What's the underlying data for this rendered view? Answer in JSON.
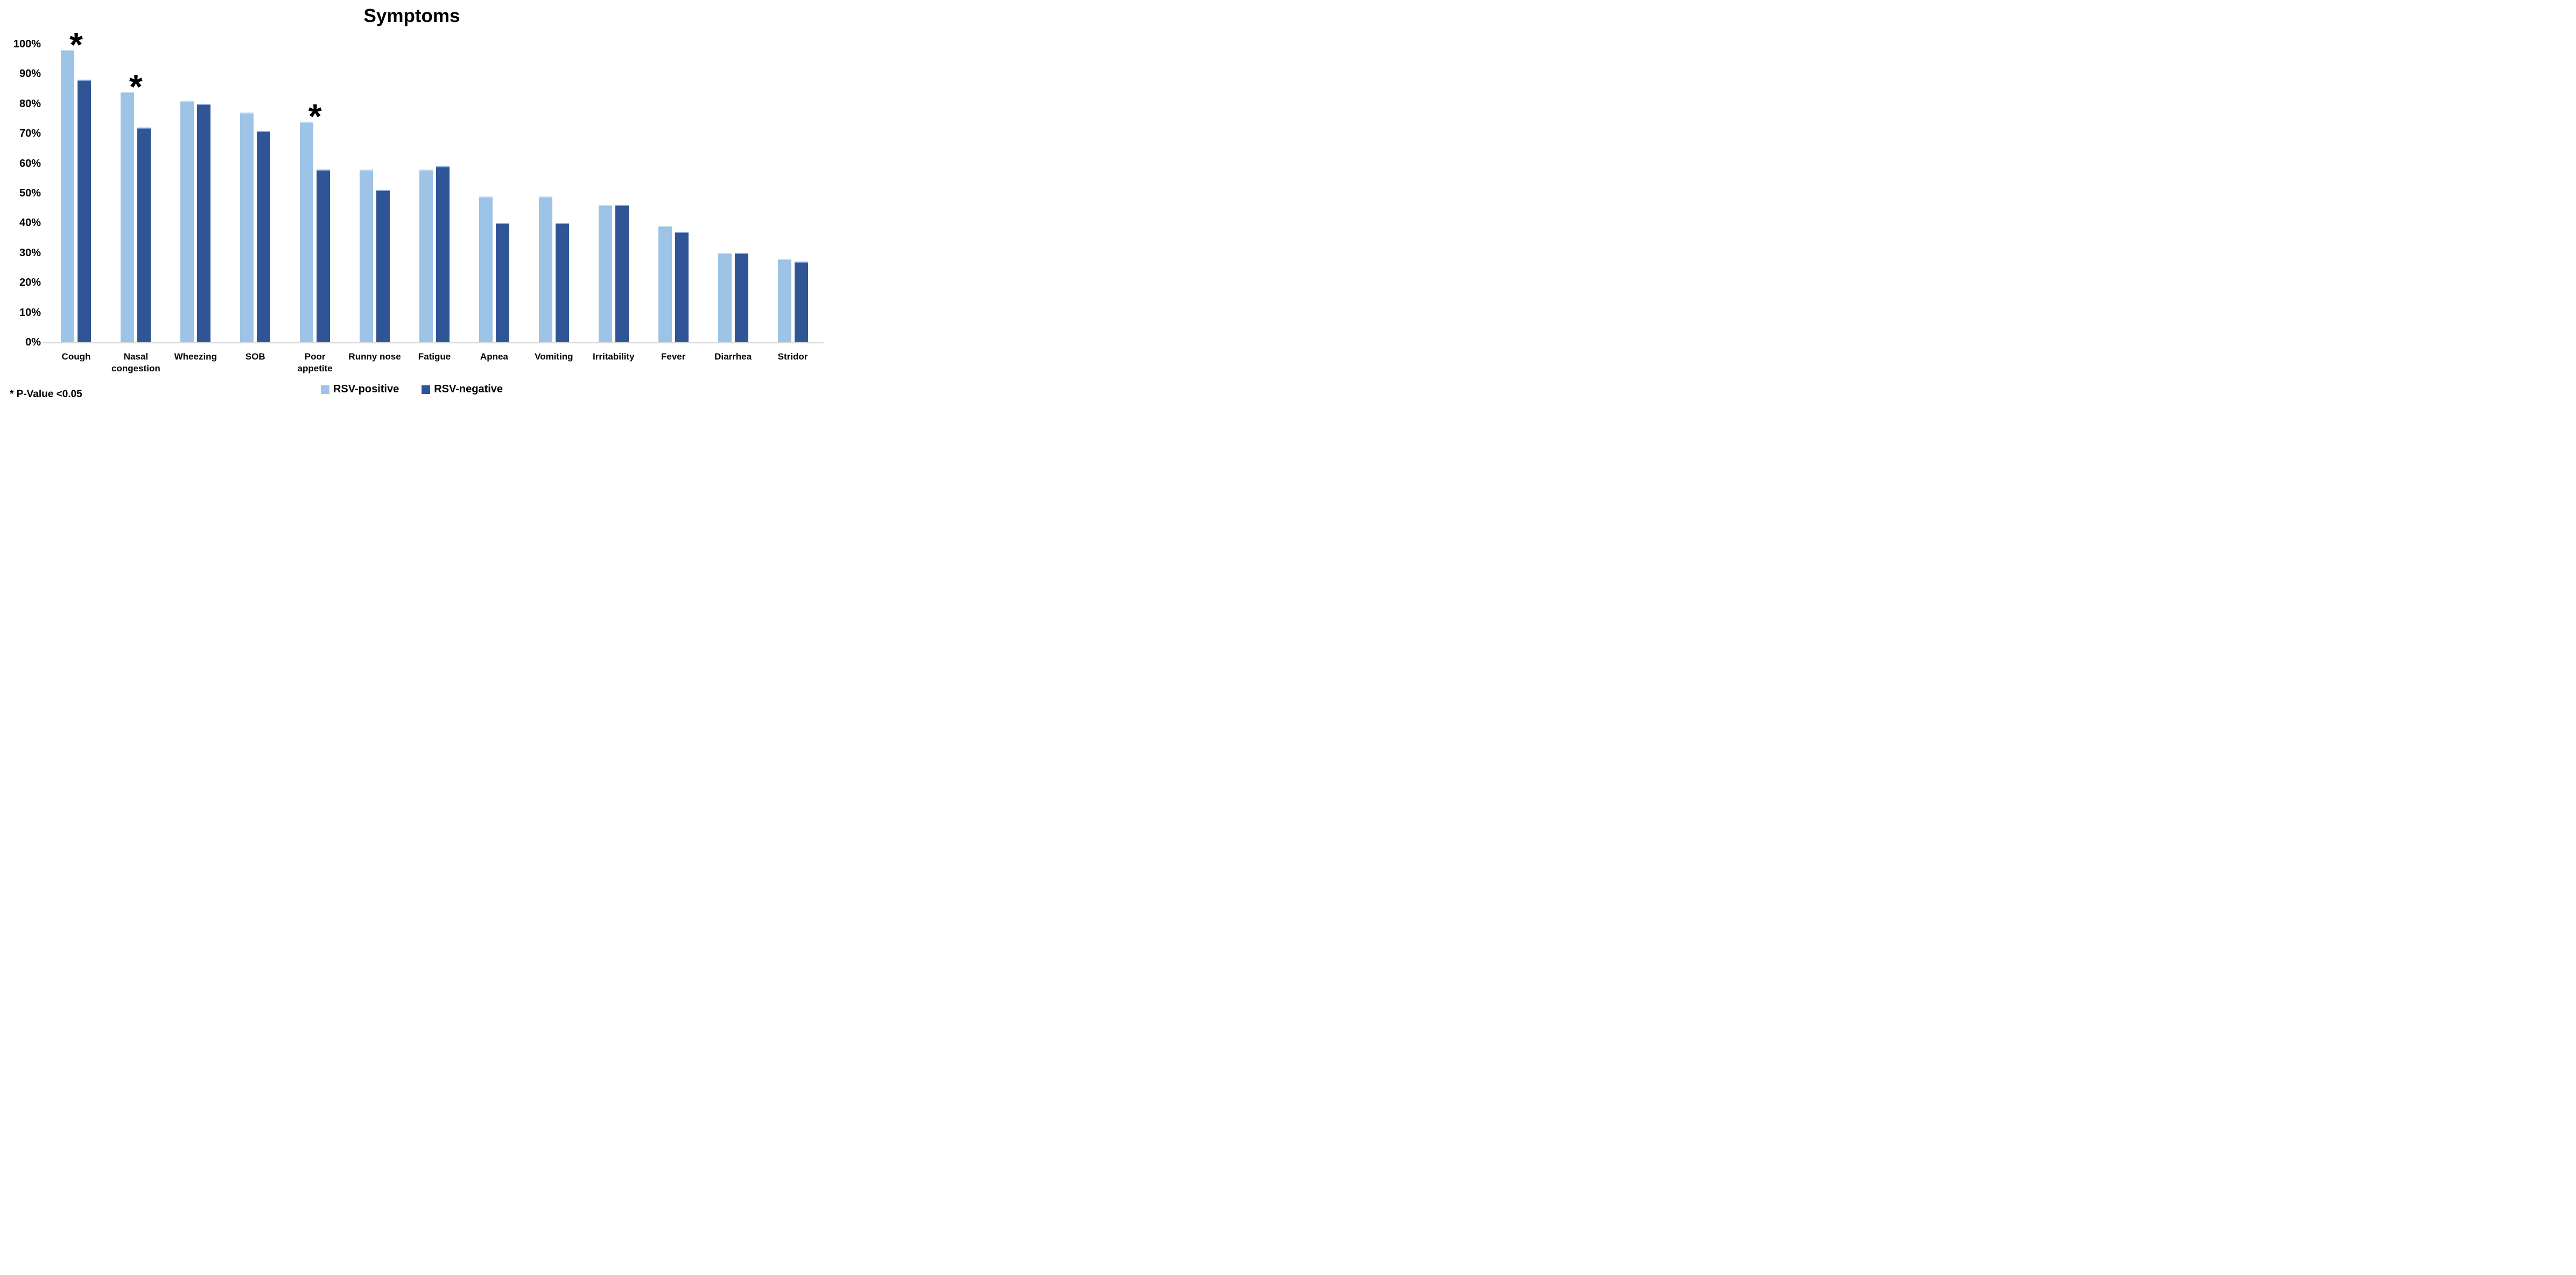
{
  "title": "Symptoms",
  "footnote": "* P-Value <0.05",
  "legend": [
    {
      "label": "RSV-positive",
      "color": "#9DC3E6"
    },
    {
      "label": "RSV-negative",
      "color": "#2F5597"
    }
  ],
  "y_axis": {
    "max": 100,
    "step": 10,
    "ticks": [
      "100%",
      "90%",
      "80%",
      "70%",
      "60%",
      "50%",
      "40%",
      "30%",
      "20%",
      "10%",
      "0%"
    ]
  },
  "colors": {
    "rsv_positive": "#9DC3E6",
    "rsv_negative": "#2F5597",
    "axis_line": "#D9D9D9",
    "text": "#000000",
    "background": "#FFFFFF"
  },
  "chart_data": {
    "type": "bar",
    "title": "Symptoms",
    "categories": [
      "Cough",
      "Nasal congestion",
      "Wheezing",
      "SOB",
      "Poor appetite",
      "Runny nose",
      "Fatigue",
      "Apnea",
      "Vomiting",
      "Irritability",
      "Fever",
      "Diarrhea",
      "Stridor"
    ],
    "series": [
      {
        "name": "RSV-positive",
        "color": "#9DC3E6",
        "values": [
          98,
          84,
          81,
          77,
          74,
          58,
          58,
          49,
          49,
          46,
          39,
          30,
          28
        ]
      },
      {
        "name": "RSV-negative",
        "color": "#2F5597",
        "values": [
          88,
          72,
          80,
          71,
          58,
          51,
          59,
          40,
          40,
          46,
          37,
          30,
          27
        ]
      }
    ],
    "unit": "%",
    "ylim": [
      0,
      100
    ],
    "grid": false,
    "legend_position": "bottom",
    "significant_categories": [
      "Cough",
      "Nasal congestion",
      "Poor appetite"
    ],
    "significance_marker": "*",
    "significance_note": "* P-Value <0.05"
  }
}
